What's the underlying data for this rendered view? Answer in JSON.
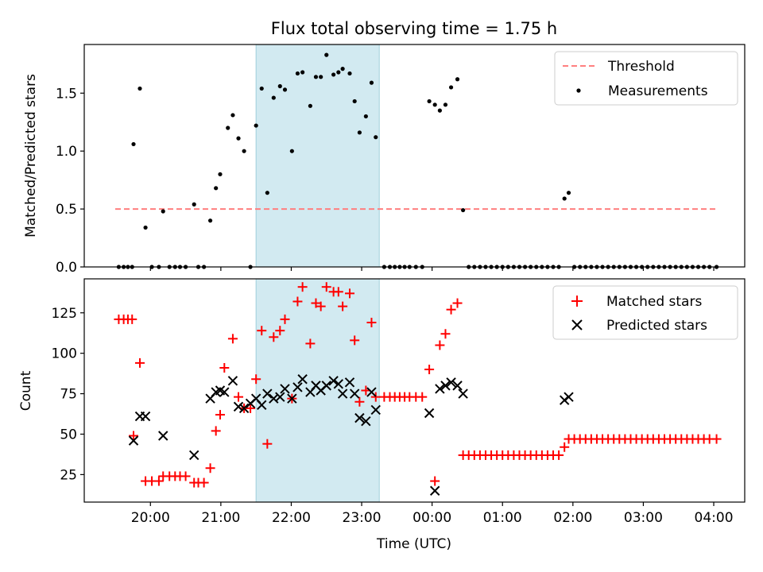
{
  "chart_data": {
    "title": "Flux total observing time = 1.75 h",
    "x_axis": {
      "label": "Time (UTC)",
      "ticks": [
        "20:00",
        "21:00",
        "22:00",
        "23:00",
        "00:00",
        "01:00",
        "02:00",
        "03:00",
        "04:00"
      ],
      "tick_values": [
        20,
        21,
        22,
        23,
        24,
        25,
        26,
        27,
        28
      ],
      "range": [
        19.06,
        28.44
      ]
    },
    "highlight_span": {
      "x": [
        21.5,
        23.25
      ],
      "color": "#add8e6"
    },
    "panels": [
      {
        "type": "scatter",
        "ylabel": "Matched/Predicted stars",
        "ylim": [
          0,
          1.92
        ],
        "yticks": [
          "0.0",
          "0.5",
          "1.0",
          "1.5"
        ],
        "ytick_values": [
          0,
          0.5,
          1.0,
          1.5
        ],
        "legend_position": "top-right",
        "series": [
          {
            "name": "Threshold",
            "kind": "dashed-line",
            "color": "#ff7f7f",
            "x": [
              19.5,
              28.05
            ],
            "y": [
              0.5,
              0.5
            ]
          },
          {
            "name": "Measurements",
            "kind": "points",
            "color": "#000000",
            "x": [
              19.55,
              19.62,
              19.68,
              19.74,
              19.76,
              19.85,
              19.93,
              20.02,
              20.12,
              20.18,
              20.27,
              20.35,
              20.42,
              20.5,
              20.62,
              20.68,
              20.76,
              20.85,
              20.93,
              20.99,
              21.1,
              21.17,
              21.25,
              21.33,
              21.42,
              21.5,
              21.58,
              21.66,
              21.75,
              21.84,
              21.91,
              22.01,
              22.09,
              22.16,
              22.27,
              22.35,
              22.42,
              22.5,
              22.6,
              22.67,
              22.73,
              22.83,
              22.9,
              22.97,
              23.06,
              23.14,
              23.2,
              23.32,
              23.4,
              23.47,
              23.54,
              23.61,
              23.68,
              23.77,
              23.86,
              23.96,
              24.04,
              24.11,
              24.19,
              24.27,
              24.36,
              24.44,
              24.52,
              24.6,
              24.68,
              24.76,
              24.84,
              24.92,
              25,
              25.08,
              25.16,
              25.24,
              25.32,
              25.4,
              25.48,
              25.56,
              25.64,
              25.72,
              25.8,
              25.88,
              25.94,
              26.02,
              26.1,
              26.18,
              26.26,
              26.34,
              26.42,
              26.5,
              26.58,
              26.66,
              26.74,
              26.82,
              26.9,
              26.98,
              27.06,
              27.14,
              27.22,
              27.3,
              27.38,
              27.46,
              27.54,
              27.62,
              27.7,
              27.78,
              27.86,
              27.94,
              28.04
            ],
            "y": [
              0,
              0,
              0,
              0,
              1.06,
              1.54,
              0.34,
              0,
              0,
              0.48,
              0,
              0,
              0,
              0,
              0.54,
              0,
              0,
              0.4,
              0.68,
              0.8,
              1.2,
              1.31,
              1.11,
              1.0,
              0,
              1.22,
              1.54,
              0.64,
              1.46,
              1.56,
              1.53,
              1.0,
              1.67,
              1.68,
              1.39,
              1.64,
              1.64,
              1.83,
              1.66,
              1.68,
              1.71,
              1.67,
              1.43,
              1.16,
              1.3,
              1.59,
              1.12,
              0,
              0,
              0,
              0,
              0,
              0,
              0,
              0,
              1.43,
              1.4,
              1.35,
              1.4,
              1.55,
              1.62,
              0.49,
              0,
              0,
              0,
              0,
              0,
              0,
              0,
              0,
              0,
              0,
              0,
              0,
              0,
              0,
              0,
              0,
              0,
              0.59,
              0.64,
              0,
              0,
              0,
              0,
              0,
              0,
              0,
              0,
              0,
              0,
              0,
              0,
              0,
              0,
              0,
              0,
              0,
              0,
              0,
              0,
              0,
              0,
              0,
              0,
              0,
              0
            ]
          }
        ]
      },
      {
        "type": "scatter",
        "ylabel": "Count",
        "ylim": [
          8,
          146
        ],
        "yticks": [
          "25",
          "50",
          "75",
          "100",
          "125"
        ],
        "ytick_values": [
          25,
          50,
          75,
          100,
          125
        ],
        "legend_position": "top-right",
        "series": [
          {
            "name": "Matched stars",
            "kind": "plus",
            "color": "#ff0000",
            "x": [
              19.55,
              19.62,
              19.68,
              19.74,
              19.76,
              19.85,
              19.93,
              20.02,
              20.12,
              20.18,
              20.27,
              20.35,
              20.42,
              20.5,
              20.62,
              20.68,
              20.76,
              20.85,
              20.93,
              20.99,
              21.05,
              21.17,
              21.25,
              21.33,
              21.42,
              21.5,
              21.58,
              21.66,
              21.75,
              21.84,
              21.91,
              22.01,
              22.09,
              22.16,
              22.27,
              22.35,
              22.42,
              22.5,
              22.6,
              22.67,
              22.73,
              22.83,
              22.9,
              22.97,
              23.06,
              23.14,
              23.2,
              23.32,
              23.4,
              23.47,
              23.54,
              23.61,
              23.68,
              23.77,
              23.86,
              23.96,
              24.04,
              24.11,
              24.19,
              24.27,
              24.36,
              24.44,
              24.52,
              24.6,
              24.68,
              24.76,
              24.84,
              24.92,
              25,
              25.08,
              25.16,
              25.24,
              25.32,
              25.4,
              25.48,
              25.56,
              25.64,
              25.72,
              25.8,
              25.88,
              25.94,
              26.02,
              26.1,
              26.18,
              26.26,
              26.34,
              26.42,
              26.5,
              26.58,
              26.66,
              26.74,
              26.82,
              26.9,
              26.98,
              27.06,
              27.14,
              27.22,
              27.3,
              27.38,
              27.46,
              27.54,
              27.62,
              27.7,
              27.78,
              27.86,
              27.94,
              28.04
            ],
            "y": [
              121,
              121,
              121,
              121,
              49,
              94,
              21,
              21,
              21,
              24,
              24,
              24,
              24,
              24,
              20,
              20,
              20,
              29,
              52,
              62,
              91,
              109,
              73,
              66,
              66,
              84,
              114,
              44,
              110,
              114,
              121,
              72,
              132,
              141,
              106,
              131,
              129,
              141,
              138,
              138,
              129,
              137,
              108,
              70,
              77,
              119,
              73,
              73,
              73,
              73,
              73,
              73,
              73,
              73,
              73,
              90,
              21,
              105,
              112,
              127,
              131,
              37,
              37,
              37,
              37,
              37,
              37,
              37,
              37,
              37,
              37,
              37,
              37,
              37,
              37,
              37,
              37,
              37,
              37,
              42,
              47,
              47,
              47,
              47,
              47,
              47,
              47,
              47,
              47,
              47,
              47,
              47,
              47,
              47,
              47,
              47,
              47,
              47,
              47,
              47,
              47,
              47,
              47,
              47,
              47,
              47,
              47
            ]
          },
          {
            "name": "Predicted stars",
            "kind": "x",
            "color": "#000000",
            "x": [
              19.76,
              19.85,
              19.93,
              20.18,
              20.62,
              20.85,
              20.93,
              20.99,
              21.05,
              21.17,
              21.25,
              21.33,
              21.42,
              21.5,
              21.58,
              21.66,
              21.75,
              21.84,
              21.91,
              22.01,
              22.09,
              22.16,
              22.27,
              22.35,
              22.42,
              22.5,
              22.6,
              22.67,
              22.73,
              22.83,
              22.9,
              22.97,
              23.06,
              23.14,
              23.2,
              23.96,
              24.04,
              24.11,
              24.19,
              24.27,
              24.36,
              24.44,
              25.88,
              25.94
            ],
            "y": [
              46,
              61,
              61,
              49,
              37,
              72,
              76,
              77,
              76,
              83,
              67,
              66,
              69,
              72,
              68,
              75,
              72,
              73,
              78,
              72,
              79,
              84,
              76,
              80,
              77,
              80,
              83,
              81,
              75,
              82,
              75,
              60,
              58,
              76,
              65,
              63,
              15,
              78,
              80,
              82,
              80,
              75,
              71,
              73
            ]
          }
        ]
      }
    ]
  }
}
